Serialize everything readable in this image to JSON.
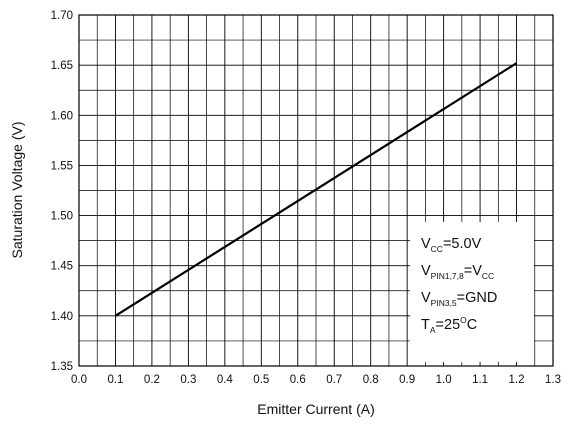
{
  "chart_data": {
    "type": "line",
    "title": "",
    "xlabel": "Emitter Current (A)",
    "ylabel": "Saturation Voltage (V)",
    "xlim": [
      0.0,
      1.3
    ],
    "ylim": [
      1.35,
      1.7
    ],
    "x_ticks": [
      "0.0",
      "0.1",
      "0.2",
      "0.3",
      "0.4",
      "0.5",
      "0.6",
      "0.7",
      "0.8",
      "0.9",
      "1.0",
      "1.1",
      "1.2",
      "1.3"
    ],
    "y_ticks": [
      "1.35",
      "1.40",
      "1.45",
      "1.50",
      "1.55",
      "1.60",
      "1.65",
      "1.70"
    ],
    "grid": true,
    "series": [
      {
        "x": [
          0.1,
          1.2
        ],
        "y": [
          1.4,
          1.652
        ]
      }
    ],
    "annotations": [
      {
        "text": "VCC=5.0V",
        "base": "V",
        "sub": "CC",
        "rest": "=5.0V"
      },
      {
        "text": "VPIN1,7,8=VCC",
        "base": "V",
        "sub": "PIN1,7,8",
        "rest": "=V",
        "sub2": "CC"
      },
      {
        "text": "VPIN3,5=GND",
        "base": "V",
        "sub": "PIN3,5",
        "rest": "=GND"
      },
      {
        "text": "TA=25OC",
        "base": "T",
        "sub": "A",
        "rest": "=25",
        "sup": "O",
        "rest2": "C"
      }
    ],
    "legend_position": "bottom-right"
  }
}
